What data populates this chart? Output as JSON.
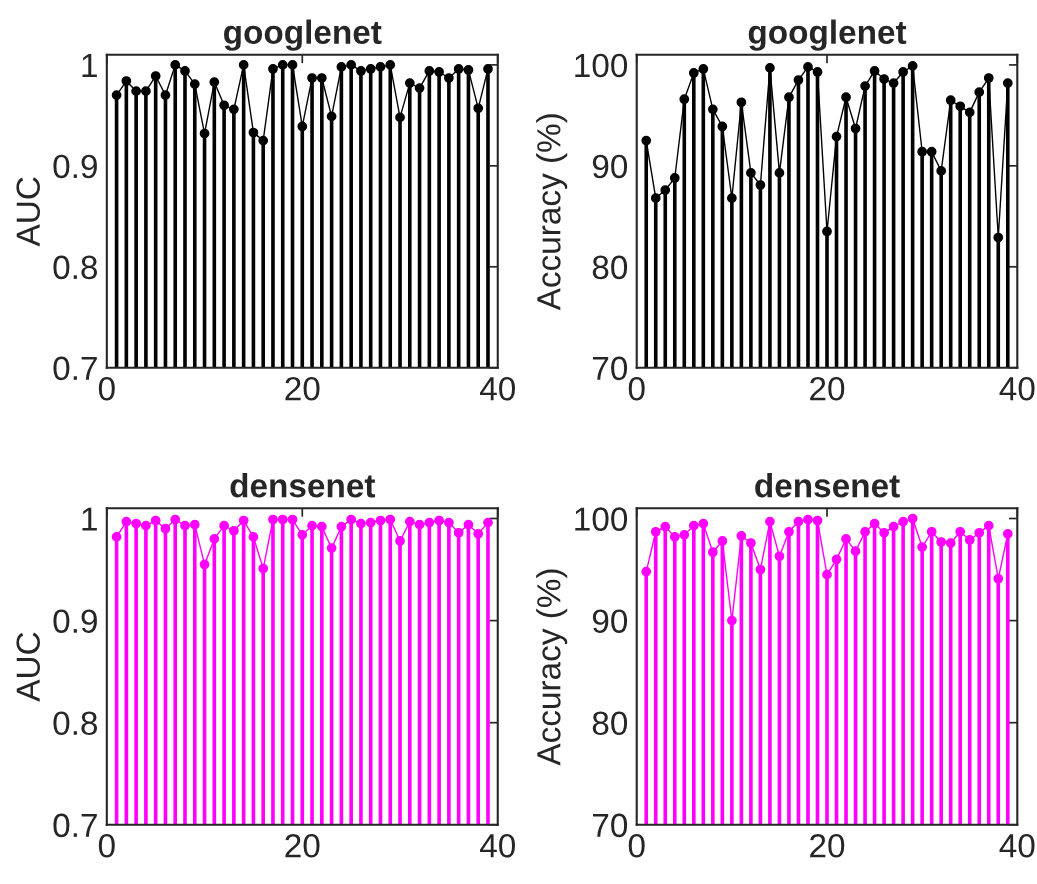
{
  "chart_data": [
    {
      "type": "lollipop",
      "title": "googlenet",
      "ylabel": "AUC",
      "x": [
        1,
        2,
        3,
        4,
        5,
        6,
        7,
        8,
        9,
        10,
        11,
        12,
        13,
        14,
        15,
        16,
        17,
        18,
        19,
        20,
        21,
        22,
        23,
        24,
        25,
        26,
        27,
        28,
        29,
        30,
        31,
        32,
        33,
        34,
        35,
        36,
        37,
        38,
        39
      ],
      "series": [
        {
          "color": "#000000",
          "values": [
            0.97,
            0.984,
            0.974,
            0.974,
            0.989,
            0.97,
            1.0,
            0.994,
            0.981,
            0.932,
            0.983,
            0.96,
            0.956,
            1.0,
            0.933,
            0.925,
            0.996,
            1.0,
            1.0,
            0.939,
            0.987,
            0.987,
            0.949,
            0.998,
            1.0,
            0.994,
            0.996,
            0.998,
            1.0,
            0.948,
            0.982,
            0.977,
            0.994,
            0.993,
            0.987,
            0.996,
            0.995,
            0.957,
            0.996
          ]
        },
        {
          "type": "line",
          "color": "#000000",
          "line_style": "solid",
          "marker": "none",
          "values": [
            0.97,
            0.984,
            0.974,
            0.974,
            0.989,
            0.97,
            1.0,
            0.994,
            0.981,
            0.932,
            0.983,
            0.96,
            0.956,
            1.0,
            0.933,
            0.925,
            0.996,
            1.0,
            1.0,
            0.939,
            0.987,
            0.987,
            0.949,
            0.998,
            1.0,
            0.994,
            0.996,
            0.998,
            1.0,
            0.948,
            0.982,
            0.977,
            0.994,
            0.993,
            0.987,
            0.996,
            0.995,
            0.957,
            0.996
          ]
        }
      ],
      "marker": "circle",
      "xlim": [
        0,
        40
      ],
      "xticks": [
        0,
        20,
        40
      ],
      "ylim": [
        0.7,
        1.01
      ],
      "yticks": [
        0.7,
        0.8,
        0.9,
        1
      ],
      "legend": false
    },
    {
      "type": "lollipop",
      "title": "googlenet",
      "ylabel": "Accuracy (%)",
      "x": [
        1,
        2,
        3,
        4,
        5,
        6,
        7,
        8,
        9,
        10,
        11,
        12,
        13,
        14,
        15,
        16,
        17,
        18,
        19,
        20,
        21,
        22,
        23,
        24,
        25,
        26,
        27,
        28,
        29,
        30,
        31,
        32,
        33,
        34,
        35,
        36,
        37,
        38,
        39
      ],
      "series": [
        {
          "color": "#000000",
          "values": [
            92.5,
            86.8,
            87.6,
            88.8,
            96.6,
            99.2,
            99.6,
            95.6,
            93.9,
            86.8,
            96.3,
            89.3,
            88.1,
            99.7,
            89.3,
            96.8,
            98.5,
            99.8,
            99.3,
            83.5,
            92.9,
            96.8,
            93.7,
            97.9,
            99.4,
            98.6,
            98.2,
            99.3,
            99.9,
            91.4,
            91.4,
            89.5,
            96.5,
            95.9,
            95.3,
            97.3,
            98.7,
            82.9,
            98.2
          ]
        },
        {
          "type": "line",
          "color": "#000000",
          "line_style": "solid",
          "marker": "none",
          "values": [
            92.5,
            86.8,
            87.6,
            88.8,
            96.6,
            99.2,
            99.6,
            95.6,
            93.9,
            86.8,
            96.3,
            89.3,
            88.1,
            99.7,
            89.3,
            96.8,
            98.5,
            99.8,
            99.3,
            83.5,
            92.9,
            96.8,
            93.7,
            97.9,
            99.4,
            98.6,
            98.2,
            99.3,
            99.9,
            91.4,
            91.4,
            89.5,
            96.5,
            95.9,
            95.3,
            97.3,
            98.7,
            82.9,
            98.2
          ]
        }
      ],
      "marker": "circle",
      "xlim": [
        0,
        40
      ],
      "xticks": [
        0,
        20,
        40
      ],
      "ylim": [
        70,
        101
      ],
      "yticks": [
        70,
        80,
        90,
        100
      ],
      "grid": false,
      "legend": false
    },
    {
      "type": "lollipop",
      "title": "densenet",
      "ylabel": "AUC",
      "x": [
        1,
        2,
        3,
        4,
        5,
        6,
        7,
        8,
        9,
        10,
        11,
        12,
        13,
        14,
        15,
        16,
        17,
        18,
        19,
        20,
        21,
        22,
        23,
        24,
        25,
        26,
        27,
        28,
        29,
        30,
        31,
        32,
        33,
        34,
        35,
        36,
        37,
        38,
        39
      ],
      "series": [
        {
          "color": "#ff00ff",
          "values": [
            0.982,
            0.997,
            0.995,
            0.993,
            0.998,
            0.99,
            0.999,
            0.993,
            0.994,
            0.955,
            0.98,
            0.993,
            0.988,
            0.998,
            0.982,
            0.951,
            0.999,
            0.999,
            0.999,
            0.984,
            0.993,
            0.992,
            0.971,
            0.992,
            0.999,
            0.995,
            0.996,
            0.998,
            0.999,
            0.978,
            0.997,
            0.994,
            0.996,
            0.998,
            0.996,
            0.986,
            0.994,
            0.985,
            0.996
          ]
        },
        {
          "type": "line",
          "color": "#ff00ff",
          "line_style": "solid",
          "marker": "none",
          "values": [
            0.982,
            0.997,
            0.995,
            0.993,
            0.998,
            0.99,
            0.999,
            0.993,
            0.994,
            0.955,
            0.98,
            0.993,
            0.988,
            0.998,
            0.982,
            0.951,
            0.999,
            0.999,
            0.999,
            0.984,
            0.993,
            0.992,
            0.971,
            0.992,
            0.999,
            0.995,
            0.996,
            0.998,
            0.999,
            0.978,
            0.997,
            0.994,
            0.996,
            0.998,
            0.996,
            0.986,
            0.994,
            0.985,
            0.996
          ]
        }
      ],
      "marker": "circle",
      "xlim": [
        0,
        40
      ],
      "xticks": [
        0,
        20,
        40
      ],
      "ylim": [
        0.7,
        1.01
      ],
      "yticks": [
        0.7,
        0.8,
        0.9,
        1
      ],
      "grid": false,
      "legend": false
    },
    {
      "type": "lollipop",
      "title": "densenet",
      "ylabel": "Accuracy (%)",
      "x": [
        1,
        2,
        3,
        4,
        5,
        6,
        7,
        8,
        9,
        10,
        11,
        12,
        13,
        14,
        15,
        16,
        17,
        18,
        19,
        20,
        21,
        22,
        23,
        24,
        25,
        26,
        27,
        28,
        29,
        30,
        31,
        32,
        33,
        34,
        35,
        36,
        37,
        38,
        39
      ],
      "series": [
        {
          "color": "#ff00ff",
          "values": [
            94.8,
            98.7,
            99.2,
            98.2,
            98.4,
            99.3,
            99.5,
            96.7,
            97.8,
            90.0,
            98.3,
            97.6,
            95.0,
            99.7,
            96.3,
            98.7,
            99.7,
            99.9,
            99.8,
            94.5,
            96.0,
            98.0,
            96.8,
            98.7,
            99.5,
            98.6,
            99.2,
            99.7,
            100,
            97.2,
            98.7,
            97.7,
            97.6,
            98.7,
            97.9,
            98.6,
            99.3,
            94.1,
            98.5
          ]
        },
        {
          "type": "line",
          "color": "#ff00ff",
          "line_style": "solid",
          "marker": "none",
          "values": [
            94.8,
            98.7,
            99.2,
            98.2,
            98.4,
            99.3,
            99.5,
            96.7,
            97.8,
            90.0,
            98.3,
            97.6,
            95.0,
            99.7,
            96.3,
            98.7,
            99.7,
            99.9,
            99.8,
            94.5,
            96.0,
            98.0,
            96.8,
            98.7,
            99.5,
            98.6,
            99.2,
            99.7,
            100,
            97.2,
            98.7,
            97.7,
            97.6,
            98.7,
            97.9,
            98.6,
            99.3,
            94.1,
            98.5
          ]
        }
      ],
      "marker": "circle",
      "xlim": [
        0,
        40
      ],
      "xticks": [
        0,
        20,
        40
      ],
      "ylim": [
        70,
        101
      ],
      "yticks": [
        70,
        80,
        90,
        100
      ],
      "grid": false,
      "legend": false
    }
  ]
}
